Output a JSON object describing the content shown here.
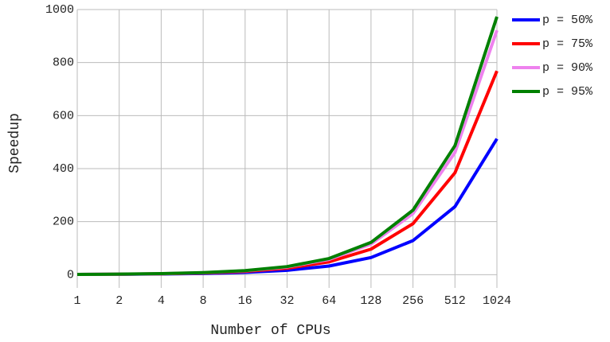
{
  "chart_data": {
    "type": "line",
    "xlabel": "Number of CPUs",
    "ylabel": "Speedup",
    "categories": [
      "1",
      "2",
      "4",
      "8",
      "16",
      "32",
      "64",
      "128",
      "256",
      "512",
      "1024"
    ],
    "series": [
      {
        "name": "p = 50%",
        "color": "#0000ff",
        "values": [
          1,
          1.5,
          2.5,
          4.5,
          8.5,
          16.5,
          32.5,
          64.5,
          128.5,
          256.5,
          512.5
        ]
      },
      {
        "name": "p = 75%",
        "color": "#ff0000",
        "values": [
          1,
          1.75,
          3.25,
          6.25,
          12.25,
          24.25,
          48.25,
          96.25,
          192.25,
          384.25,
          768.25
        ]
      },
      {
        "name": "p = 90%",
        "color": "#ee82ee",
        "values": [
          1,
          1.9,
          3.7,
          7.3,
          14.5,
          28.9,
          57.7,
          115.3,
          230.5,
          460.9,
          921.7
        ]
      },
      {
        "name": "p = 95%",
        "color": "#008000",
        "values": [
          1,
          1.95,
          3.85,
          7.65,
          15.25,
          30.45,
          60.85,
          121.65,
          243.25,
          486.45,
          972.85
        ]
      }
    ],
    "ylim": [
      -50,
      1000
    ],
    "yticks": [
      0,
      200,
      400,
      600,
      800,
      1000
    ],
    "grid": true,
    "legend": "right"
  }
}
